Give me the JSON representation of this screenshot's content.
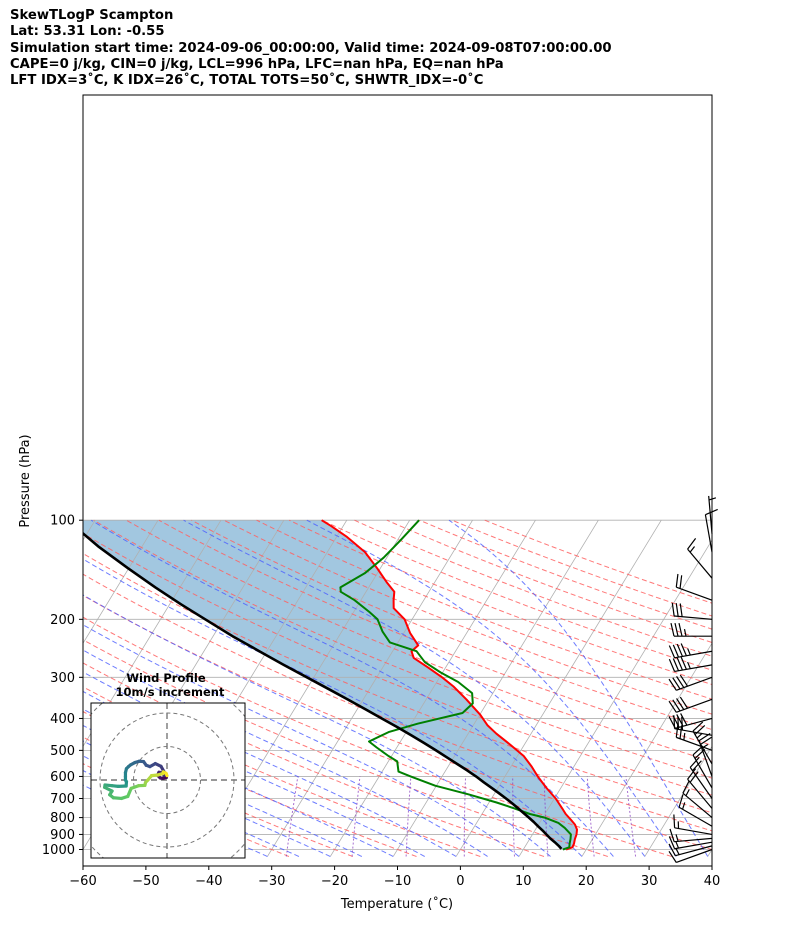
{
  "header": {
    "title": "SkewTLogP Scampton",
    "latlon": "Lat: 53.31   Lon: -0.55",
    "times": "Simulation start time: 2024-09-06_00:00:00, Valid time: 2024-09-08T07:00:00.00",
    "indices1": "CAPE=0 j/kg, CIN=0 j/kg, LCL=996 hPa, LFC=nan hPa, EQ=nan hPa",
    "indices2": "LFT IDX=3˚C, K IDX=26˚C, TOTAL TOTS=50˚C, SHWTR_IDX=-0˚C"
  },
  "chart_data": {
    "type": "line",
    "subtype": "skew-t log-p",
    "xlabel": "Temperature (˚C)",
    "ylabel": "Pressure (hPa)",
    "xlim": [
      -60,
      40
    ],
    "ylim": [
      1050,
      100
    ],
    "y_scale": "log",
    "x_ticks": [
      -60,
      -50,
      -40,
      -30,
      -20,
      -10,
      0,
      10,
      20,
      30,
      40
    ],
    "x_tick_labels": [
      "−60",
      "−50",
      "−40",
      "−30",
      "−20",
      "−10",
      "0",
      "10",
      "20",
      "30",
      "40"
    ],
    "y_ticks": [
      100,
      200,
      300,
      400,
      500,
      600,
      700,
      800,
      900,
      1000
    ],
    "y_tick_labels": [
      "100",
      "200",
      "300",
      "400",
      "500",
      "600",
      "700",
      "800",
      "900",
      "1000"
    ],
    "grid": true,
    "colors": {
      "temperature": "#ff0000",
      "dewpoint": "#008000",
      "parcel": "#000000",
      "cape_fill": "#a2c7e0",
      "dry_adiabats": "#ff6060",
      "moist_adiabats": "#4a5cff",
      "mixing_ratio": "#8a3fc0",
      "isotherms": "#b0b0b0"
    },
    "series": [
      {
        "role": "temperature",
        "points": [
          [
            1000,
            16.8
          ],
          [
            985,
            17.6
          ],
          [
            960,
            17.5
          ],
          [
            930,
            17.2
          ],
          [
            900,
            17.0
          ],
          [
            870,
            16.6
          ],
          [
            840,
            15.8
          ],
          [
            810,
            14.6
          ],
          [
            780,
            13.3
          ],
          [
            750,
            12.2
          ],
          [
            700,
            10.2
          ],
          [
            650,
            7.7
          ],
          [
            600,
            5.2
          ],
          [
            560,
            3.3
          ],
          [
            520,
            1.0
          ],
          [
            480,
            -2.3
          ],
          [
            445,
            -5.5
          ],
          [
            420,
            -7.7
          ],
          [
            390,
            -9.9
          ],
          [
            350,
            -13.6
          ],
          [
            320,
            -16.9
          ],
          [
            300,
            -19.6
          ],
          [
            280,
            -22.8
          ],
          [
            262,
            -26.0
          ],
          [
            250,
            -27.0
          ],
          [
            240,
            -26.5
          ],
          [
            220,
            -29.0
          ],
          [
            200,
            -31.2
          ],
          [
            185,
            -34.0
          ],
          [
            175,
            -34.8
          ],
          [
            165,
            -35.5
          ],
          [
            155,
            -37.5
          ],
          [
            140,
            -40.5
          ],
          [
            125,
            -44.0
          ],
          [
            112,
            -48.5
          ],
          [
            104,
            -52.0
          ],
          [
            100,
            -54.0
          ]
        ]
      },
      {
        "role": "dewpoint",
        "points": [
          [
            1000,
            16.3
          ],
          [
            985,
            17.1
          ],
          [
            960,
            16.8
          ],
          [
            930,
            16.5
          ],
          [
            900,
            16.1
          ],
          [
            860,
            14.5
          ],
          [
            830,
            13.0
          ],
          [
            800,
            10.3
          ],
          [
            780,
            7.6
          ],
          [
            750,
            4.6
          ],
          [
            720,
            1.2
          ],
          [
            680,
            -4.1
          ],
          [
            640,
            -10.2
          ],
          [
            600,
            -15.0
          ],
          [
            580,
            -17.4
          ],
          [
            540,
            -18.6
          ],
          [
            520,
            -20.5
          ],
          [
            490,
            -23.2
          ],
          [
            470,
            -25.0
          ],
          [
            440,
            -22.8
          ],
          [
            415,
            -19.0
          ],
          [
            385,
            -12.9
          ],
          [
            360,
            -12.2
          ],
          [
            335,
            -13.3
          ],
          [
            310,
            -16.6
          ],
          [
            290,
            -20.3
          ],
          [
            270,
            -23.8
          ],
          [
            250,
            -26.2
          ],
          [
            235,
            -31.3
          ],
          [
            218,
            -33.5
          ],
          [
            200,
            -35.5
          ],
          [
            190,
            -37.5
          ],
          [
            175,
            -41.0
          ],
          [
            165,
            -44.0
          ],
          [
            160,
            -44.5
          ],
          [
            145,
            -42.0
          ],
          [
            130,
            -40.5
          ],
          [
            115,
            -39.5
          ],
          [
            100,
            -38.5
          ]
        ]
      },
      {
        "role": "parcel",
        "points": [
          [
            996,
            16.0
          ],
          [
            975,
            15.3
          ],
          [
            950,
            14.3
          ],
          [
            925,
            13.2
          ],
          [
            900,
            12.2
          ],
          [
            875,
            11.2
          ],
          [
            850,
            10.1
          ],
          [
            825,
            9.0
          ],
          [
            800,
            7.8
          ],
          [
            775,
            6.5
          ],
          [
            750,
            5.2
          ],
          [
            725,
            3.8
          ],
          [
            700,
            2.3
          ],
          [
            675,
            0.7
          ],
          [
            650,
            -1.0
          ],
          [
            625,
            -2.8
          ],
          [
            600,
            -4.6
          ],
          [
            575,
            -6.6
          ],
          [
            550,
            -8.8
          ],
          [
            525,
            -11.1
          ],
          [
            500,
            -13.5
          ],
          [
            475,
            -16.1
          ],
          [
            450,
            -18.9
          ],
          [
            425,
            -21.9
          ],
          [
            400,
            -25.2
          ],
          [
            375,
            -28.7
          ],
          [
            350,
            -32.5
          ],
          [
            325,
            -36.6
          ],
          [
            300,
            -41.1
          ],
          [
            275,
            -46.0
          ],
          [
            250,
            -51.2
          ],
          [
            225,
            -56.9
          ],
          [
            200,
            -62.9
          ],
          [
            180,
            -68.2
          ],
          [
            160,
            -73.9
          ],
          [
            140,
            -80.1
          ],
          [
            120,
            -87.0
          ],
          [
            100,
            -94.4
          ]
        ]
      }
    ],
    "wind_barbs": [
      {
        "p": 1000,
        "dir": 250,
        "spd": 10
      },
      {
        "p": 975,
        "dir": 255,
        "spd": 15
      },
      {
        "p": 950,
        "dir": 260,
        "spd": 15
      },
      {
        "p": 925,
        "dir": 265,
        "spd": 15
      },
      {
        "p": 900,
        "dir": 280,
        "spd": 15
      },
      {
        "p": 850,
        "dir": 300,
        "spd": 15
      },
      {
        "p": 800,
        "dir": 310,
        "spd": 15
      },
      {
        "p": 750,
        "dir": 320,
        "spd": 20
      },
      {
        "p": 700,
        "dir": 325,
        "spd": 20
      },
      {
        "p": 650,
        "dir": 330,
        "spd": 20
      },
      {
        "p": 600,
        "dir": 340,
        "spd": 25
      },
      {
        "p": 550,
        "dir": 330,
        "spd": 25
      },
      {
        "p": 500,
        "dir": 290,
        "spd": 25
      },
      {
        "p": 450,
        "dir": 280,
        "spd": 30
      },
      {
        "p": 400,
        "dir": 255,
        "spd": 40
      },
      {
        "p": 350,
        "dir": 250,
        "spd": 40
      },
      {
        "p": 300,
        "dir": 250,
        "spd": 40
      },
      {
        "p": 275,
        "dir": 260,
        "spd": 45
      },
      {
        "p": 250,
        "dir": 260,
        "spd": 45
      },
      {
        "p": 225,
        "dir": 270,
        "spd": 35
      },
      {
        "p": 200,
        "dir": 275,
        "spd": 30
      },
      {
        "p": 175,
        "dir": 290,
        "spd": 20
      },
      {
        "p": 150,
        "dir": 320,
        "spd": 15
      },
      {
        "p": 125,
        "dir": 350,
        "spd": 10
      },
      {
        "p": 110,
        "dir": 355,
        "spd": 5
      }
    ],
    "hodograph": {
      "title": "Wind Profile",
      "subtitle": "10m/s increment",
      "ring_increment": 10,
      "points_uv": [
        [
          -0.2,
          0.8
        ],
        [
          -1.2,
          0.5
        ],
        [
          -2.0,
          0.6
        ],
        [
          -2.8,
          1.4
        ],
        [
          -2.4,
          2.3
        ],
        [
          -1.4,
          2.2
        ],
        [
          -0.9,
          1.4
        ],
        [
          -0.8,
          2.3
        ],
        [
          -1.8,
          4.1
        ],
        [
          -3.5,
          4.9
        ],
        [
          -5.1,
          4.0
        ],
        [
          -6.2,
          4.4
        ],
        [
          -7.0,
          5.5
        ],
        [
          -8.3,
          5.6
        ],
        [
          -9.6,
          5.2
        ],
        [
          -10.9,
          4.5
        ],
        [
          -11.5,
          4.0
        ],
        [
          -12.1,
          3.4
        ],
        [
          -12.4,
          2.2
        ],
        [
          -12.4,
          1.0
        ],
        [
          -12.4,
          0.0
        ],
        [
          -12.1,
          -0.5
        ],
        [
          -12.2,
          -1.8
        ],
        [
          -14.6,
          -1.9
        ],
        [
          -16.4,
          -1.7
        ],
        [
          -18.5,
          -1.5
        ],
        [
          -18.6,
          -2.2
        ],
        [
          -16.4,
          -3.3
        ],
        [
          -17.1,
          -4.4
        ],
        [
          -16.0,
          -5.3
        ],
        [
          -13.6,
          -5.5
        ],
        [
          -11.7,
          -4.9
        ],
        [
          -10.7,
          -2.5
        ],
        [
          -8.5,
          -1.7
        ],
        [
          -6.6,
          -1.6
        ],
        [
          -6.4,
          -0.7
        ],
        [
          -5.7,
          0.0
        ],
        [
          -4.6,
          1.3
        ],
        [
          -2.7,
          1.5
        ],
        [
          -1.3,
          1.9
        ],
        [
          -1.1,
          2.4
        ],
        [
          -0.3,
          2.0
        ],
        [
          0.0,
          1.3
        ]
      ]
    }
  }
}
